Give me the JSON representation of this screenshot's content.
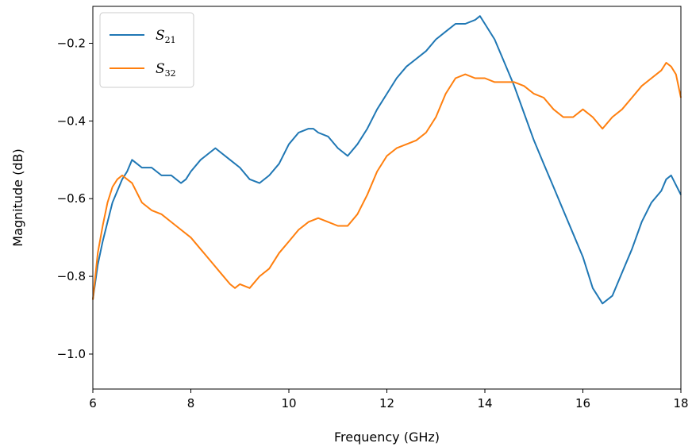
{
  "chart_data": {
    "type": "line",
    "xlabel": "Frequency (GHz)",
    "ylabel": "Magnitude (dB)",
    "xlim": [
      6,
      18
    ],
    "ylim": [
      -1.09,
      -0.105
    ],
    "xticks": [
      6,
      8,
      10,
      12,
      14,
      16,
      18
    ],
    "xtick_labels": [
      "6",
      "8",
      "10",
      "12",
      "14",
      "16",
      "18"
    ],
    "yticks": [
      -1.0,
      -0.8,
      -0.6,
      -0.4,
      -0.2
    ],
    "ytick_labels": [
      "−1.0",
      "−0.8",
      "−0.6",
      "−0.4",
      "−0.2"
    ],
    "grid": false,
    "legend_position": "top-left",
    "series": [
      {
        "name": "S21",
        "label_main": "S",
        "label_sub": "21",
        "color": "#1f77b4",
        "x": [
          6.0,
          6.1,
          6.2,
          6.3,
          6.4,
          6.5,
          6.6,
          6.7,
          6.8,
          6.9,
          7.0,
          7.2,
          7.4,
          7.6,
          7.8,
          7.9,
          8.0,
          8.2,
          8.4,
          8.5,
          8.6,
          8.8,
          9.0,
          9.2,
          9.4,
          9.6,
          9.8,
          10.0,
          10.2,
          10.4,
          10.5,
          10.6,
          10.8,
          11.0,
          11.2,
          11.4,
          11.6,
          11.8,
          12.0,
          12.2,
          12.4,
          12.6,
          12.8,
          13.0,
          13.2,
          13.4,
          13.6,
          13.8,
          13.9,
          14.0,
          14.2,
          14.4,
          14.6,
          14.8,
          15.0,
          15.2,
          15.4,
          15.6,
          15.8,
          16.0,
          16.2,
          16.4,
          16.6,
          16.8,
          17.0,
          17.2,
          17.4,
          17.6,
          17.7,
          17.8,
          18.0
        ],
        "y": [
          -0.86,
          -0.77,
          -0.71,
          -0.66,
          -0.61,
          -0.58,
          -0.55,
          -0.53,
          -0.5,
          -0.51,
          -0.52,
          -0.52,
          -0.54,
          -0.54,
          -0.56,
          -0.55,
          -0.53,
          -0.5,
          -0.48,
          -0.47,
          -0.48,
          -0.5,
          -0.52,
          -0.55,
          -0.56,
          -0.54,
          -0.51,
          -0.46,
          -0.43,
          -0.42,
          -0.42,
          -0.43,
          -0.44,
          -0.47,
          -0.49,
          -0.46,
          -0.42,
          -0.37,
          -0.33,
          -0.29,
          -0.26,
          -0.24,
          -0.22,
          -0.19,
          -0.17,
          -0.15,
          -0.15,
          -0.14,
          -0.13,
          -0.15,
          -0.19,
          -0.25,
          -0.31,
          -0.38,
          -0.45,
          -0.51,
          -0.57,
          -0.63,
          -0.69,
          -0.75,
          -0.83,
          -0.87,
          -0.85,
          -0.79,
          -0.73,
          -0.66,
          -0.61,
          -0.58,
          -0.55,
          -0.54,
          -0.59
        ]
      },
      {
        "name": "S32",
        "label_main": "S",
        "label_sub": "32",
        "color": "#ff7f0e",
        "x": [
          6.0,
          6.1,
          6.2,
          6.3,
          6.4,
          6.5,
          6.6,
          6.7,
          6.8,
          7.0,
          7.2,
          7.4,
          7.6,
          7.8,
          8.0,
          8.2,
          8.4,
          8.6,
          8.8,
          8.9,
          9.0,
          9.2,
          9.4,
          9.6,
          9.8,
          10.0,
          10.2,
          10.4,
          10.6,
          10.8,
          11.0,
          11.2,
          11.4,
          11.6,
          11.8,
          12.0,
          12.2,
          12.4,
          12.6,
          12.8,
          13.0,
          13.2,
          13.4,
          13.6,
          13.8,
          14.0,
          14.2,
          14.4,
          14.6,
          14.8,
          15.0,
          15.2,
          15.4,
          15.6,
          15.8,
          16.0,
          16.2,
          16.4,
          16.6,
          16.8,
          17.0,
          17.2,
          17.4,
          17.6,
          17.7,
          17.8,
          17.9,
          18.0
        ],
        "y": [
          -0.86,
          -0.74,
          -0.67,
          -0.61,
          -0.57,
          -0.55,
          -0.54,
          -0.55,
          -0.56,
          -0.61,
          -0.63,
          -0.64,
          -0.66,
          -0.68,
          -0.7,
          -0.73,
          -0.76,
          -0.79,
          -0.82,
          -0.83,
          -0.82,
          -0.83,
          -0.8,
          -0.78,
          -0.74,
          -0.71,
          -0.68,
          -0.66,
          -0.65,
          -0.66,
          -0.67,
          -0.67,
          -0.64,
          -0.59,
          -0.53,
          -0.49,
          -0.47,
          -0.46,
          -0.45,
          -0.43,
          -0.39,
          -0.33,
          -0.29,
          -0.28,
          -0.29,
          -0.29,
          -0.3,
          -0.3,
          -0.3,
          -0.31,
          -0.33,
          -0.34,
          -0.37,
          -0.39,
          -0.39,
          -0.37,
          -0.39,
          -0.42,
          -0.39,
          -0.37,
          -0.34,
          -0.31,
          -0.29,
          -0.27,
          -0.25,
          -0.26,
          -0.28,
          -0.34
        ]
      }
    ]
  }
}
